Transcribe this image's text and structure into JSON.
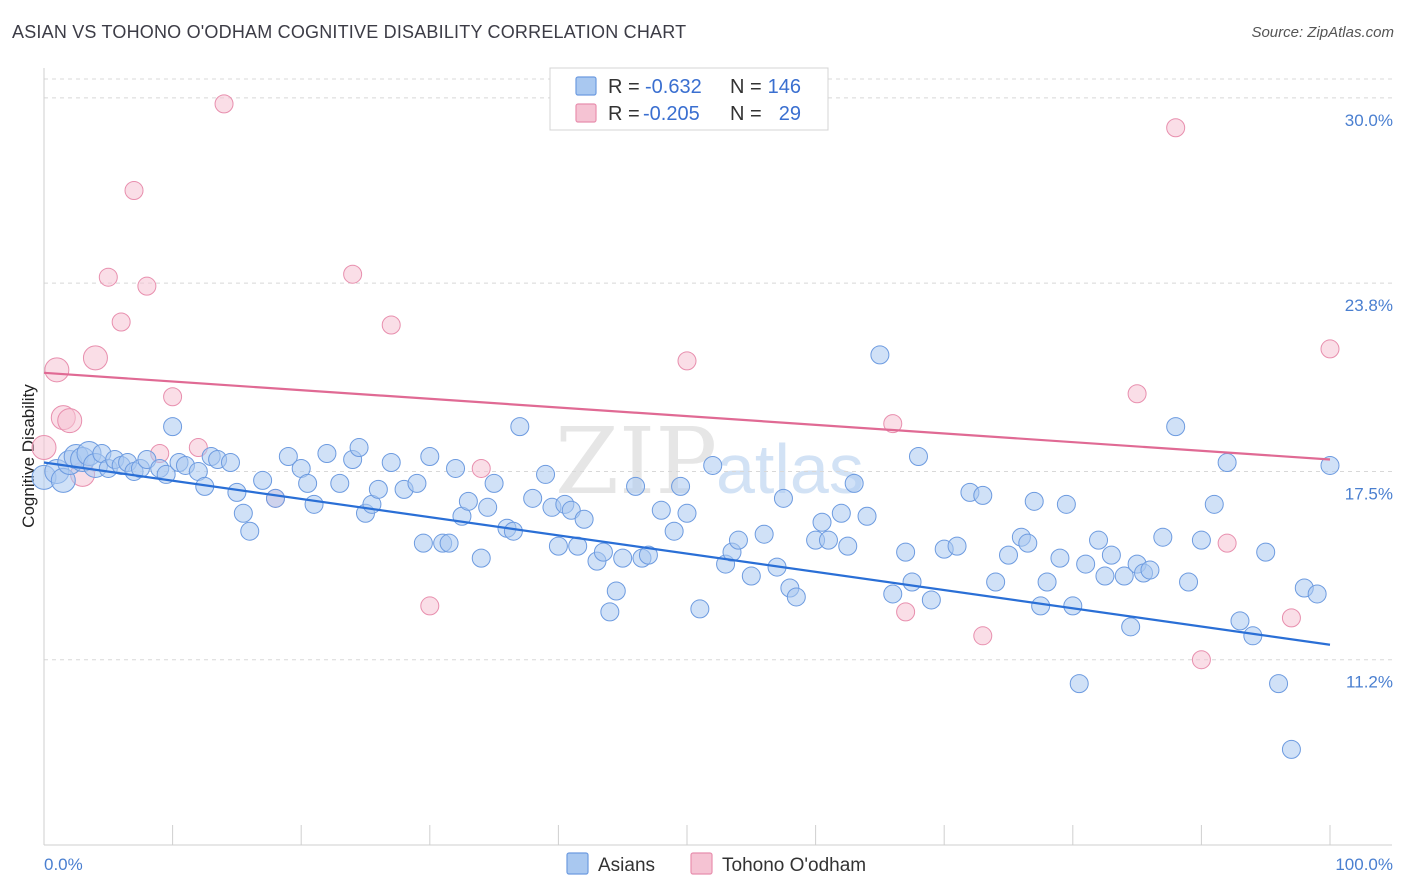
{
  "title": "ASIAN VS TOHONO O'ODHAM COGNITIVE DISABILITY CORRELATION CHART",
  "source": "Source: ZipAtlas.com",
  "watermark": {
    "zip": "ZIP",
    "atlas": "atlas"
  },
  "colors": {
    "asians_fill": "#a9c8f0",
    "asians_stroke": "#6d9be0",
    "asians_line": "#2a6fd6",
    "tohono_fill": "#f5c3d3",
    "tohono_stroke": "#e88fae",
    "tohono_line": "#e06a94",
    "grid": "#d8d8d8",
    "axis_label": "#4a7fd0"
  },
  "legend": {
    "rows": [
      {
        "series": "asians",
        "r_label": "R =",
        "r_value": "-0.632",
        "n_label": "N =",
        "n_value": "146"
      },
      {
        "series": "tohono",
        "r_label": "R =",
        "r_value": "-0.205",
        "n_label": "N =",
        "n_value": "29"
      }
    ]
  },
  "chart_data": {
    "type": "scatter",
    "title": "ASIAN VS TOHONO O'ODHAM COGNITIVE DISABILITY CORRELATION CHART",
    "xlabel": "",
    "ylabel": "Cognitive Disability",
    "xlim": [
      0,
      100
    ],
    "ylim": [
      5,
      31
    ],
    "x_tick_labels": [
      "0.0%",
      "100.0%"
    ],
    "y_ticks": [
      11.2,
      17.5,
      23.8,
      30.0
    ],
    "y_tick_labels": [
      "11.2%",
      "17.5%",
      "23.8%",
      "30.0%"
    ],
    "series": [
      {
        "name": "Asians",
        "key": "asians",
        "trend": {
          "x": [
            0,
            100
          ],
          "y": [
            17.8,
            11.7
          ]
        },
        "points": [
          [
            0,
            17.3
          ],
          [
            1,
            17.5
          ],
          [
            1.5,
            17.2
          ],
          [
            2,
            17.8
          ],
          [
            2.5,
            18.0
          ],
          [
            3,
            17.9
          ],
          [
            3.5,
            18.1
          ],
          [
            4,
            17.7
          ],
          [
            4.5,
            18.1
          ],
          [
            5,
            17.6
          ],
          [
            5.5,
            17.9
          ],
          [
            6,
            17.7
          ],
          [
            6.5,
            17.8
          ],
          [
            7,
            17.5
          ],
          [
            7.5,
            17.6
          ],
          [
            8,
            17.9
          ],
          [
            9,
            17.6
          ],
          [
            9.5,
            17.4
          ],
          [
            10,
            19.0
          ],
          [
            10.5,
            17.8
          ],
          [
            11,
            17.7
          ],
          [
            12,
            17.5
          ],
          [
            12.5,
            17.0
          ],
          [
            13,
            18.0
          ],
          [
            13.5,
            17.9
          ],
          [
            14.5,
            17.8
          ],
          [
            15,
            16.8
          ],
          [
            15.5,
            16.1
          ],
          [
            16,
            15.5
          ],
          [
            17,
            17.2
          ],
          [
            18,
            16.6
          ],
          [
            19,
            18.0
          ],
          [
            20,
            17.6
          ],
          [
            20.5,
            17.1
          ],
          [
            21,
            16.4
          ],
          [
            22,
            18.1
          ],
          [
            23,
            17.1
          ],
          [
            24,
            17.9
          ],
          [
            24.5,
            18.3
          ],
          [
            25,
            16.1
          ],
          [
            25.5,
            16.4
          ],
          [
            26,
            16.9
          ],
          [
            27,
            17.8
          ],
          [
            28,
            16.9
          ],
          [
            29,
            17.1
          ],
          [
            29.5,
            15.1
          ],
          [
            30,
            18.0
          ],
          [
            31,
            15.1
          ],
          [
            31.5,
            15.1
          ],
          [
            32,
            17.6
          ],
          [
            32.5,
            16.0
          ],
          [
            33,
            16.5
          ],
          [
            34,
            14.6
          ],
          [
            34.5,
            16.3
          ],
          [
            35,
            17.1
          ],
          [
            36,
            15.6
          ],
          [
            36.5,
            15.5
          ],
          [
            37,
            19.0
          ],
          [
            38,
            16.6
          ],
          [
            39,
            17.4
          ],
          [
            39.5,
            16.3
          ],
          [
            40,
            15.0
          ],
          [
            40.5,
            16.4
          ],
          [
            41,
            16.2
          ],
          [
            41.5,
            15.0
          ],
          [
            42,
            15.9
          ],
          [
            43,
            14.5
          ],
          [
            43.5,
            14.8
          ],
          [
            44,
            12.8
          ],
          [
            44.5,
            13.5
          ],
          [
            45,
            14.6
          ],
          [
            46,
            17.0
          ],
          [
            46.5,
            14.6
          ],
          [
            47,
            14.7
          ],
          [
            48,
            16.2
          ],
          [
            49,
            15.5
          ],
          [
            49.5,
            17.0
          ],
          [
            50,
            16.1
          ],
          [
            51,
            12.9
          ],
          [
            52,
            17.7
          ],
          [
            53,
            14.4
          ],
          [
            53.5,
            14.8
          ],
          [
            54,
            15.2
          ],
          [
            55,
            14.0
          ],
          [
            56,
            15.4
          ],
          [
            57,
            14.3
          ],
          [
            57.5,
            16.6
          ],
          [
            58,
            13.6
          ],
          [
            58.5,
            13.3
          ],
          [
            60,
            15.2
          ],
          [
            60.5,
            15.8
          ],
          [
            61,
            15.2
          ],
          [
            62,
            16.1
          ],
          [
            62.5,
            15.0
          ],
          [
            63,
            17.1
          ],
          [
            64,
            16.0
          ],
          [
            65,
            21.4
          ],
          [
            66,
            13.4
          ],
          [
            67,
            14.8
          ],
          [
            67.5,
            13.8
          ],
          [
            68,
            18.0
          ],
          [
            69,
            13.2
          ],
          [
            70,
            14.9
          ],
          [
            71,
            15.0
          ],
          [
            72,
            16.8
          ],
          [
            73,
            16.7
          ],
          [
            74,
            13.8
          ],
          [
            75,
            14.7
          ],
          [
            76,
            15.3
          ],
          [
            76.5,
            15.1
          ],
          [
            77,
            16.5
          ],
          [
            77.5,
            13.0
          ],
          [
            78,
            13.8
          ],
          [
            79,
            14.6
          ],
          [
            79.5,
            16.4
          ],
          [
            80,
            13.0
          ],
          [
            80.5,
            10.4
          ],
          [
            81,
            14.4
          ],
          [
            82,
            15.2
          ],
          [
            82.5,
            14.0
          ],
          [
            83,
            14.7
          ],
          [
            84,
            14.0
          ],
          [
            84.5,
            12.3
          ],
          [
            85,
            14.4
          ],
          [
            85.5,
            14.1
          ],
          [
            86,
            14.2
          ],
          [
            87,
            15.3
          ],
          [
            88,
            19.0
          ],
          [
            89,
            13.8
          ],
          [
            90,
            15.2
          ],
          [
            91,
            16.4
          ],
          [
            92,
            17.8
          ],
          [
            93,
            12.5
          ],
          [
            94,
            12.0
          ],
          [
            95,
            14.8
          ],
          [
            96,
            10.4
          ],
          [
            97,
            8.2
          ],
          [
            98,
            13.6
          ],
          [
            99,
            13.4
          ],
          [
            100,
            17.7
          ]
        ]
      },
      {
        "name": "Tohono O'odham",
        "key": "tohono",
        "trend": {
          "x": [
            0,
            100
          ],
          "y": [
            20.8,
            17.9
          ]
        },
        "points": [
          [
            0,
            18.3
          ],
          [
            1,
            20.9
          ],
          [
            1.5,
            19.3
          ],
          [
            2,
            19.2
          ],
          [
            3,
            17.4
          ],
          [
            4,
            21.3
          ],
          [
            5,
            24.0
          ],
          [
            6,
            22.5
          ],
          [
            7,
            26.9
          ],
          [
            8,
            23.7
          ],
          [
            9,
            18.1
          ],
          [
            10,
            20.0
          ],
          [
            12,
            18.3
          ],
          [
            14,
            29.8
          ],
          [
            18,
            16.6
          ],
          [
            24,
            24.1
          ],
          [
            27,
            22.4
          ],
          [
            30,
            13.0
          ],
          [
            34,
            17.6
          ],
          [
            50,
            21.2
          ],
          [
            66,
            19.1
          ],
          [
            67,
            12.8
          ],
          [
            73,
            12.0
          ],
          [
            85,
            20.1
          ],
          [
            88,
            29.0
          ],
          [
            90,
            11.2
          ],
          [
            92,
            15.1
          ],
          [
            97,
            12.6
          ],
          [
            100,
            21.6
          ]
        ]
      }
    ]
  },
  "bottom_legend": {
    "items": [
      {
        "series": "asians",
        "label": "Asians"
      },
      {
        "series": "tohono",
        "label": "Tohono O'odham"
      }
    ]
  }
}
